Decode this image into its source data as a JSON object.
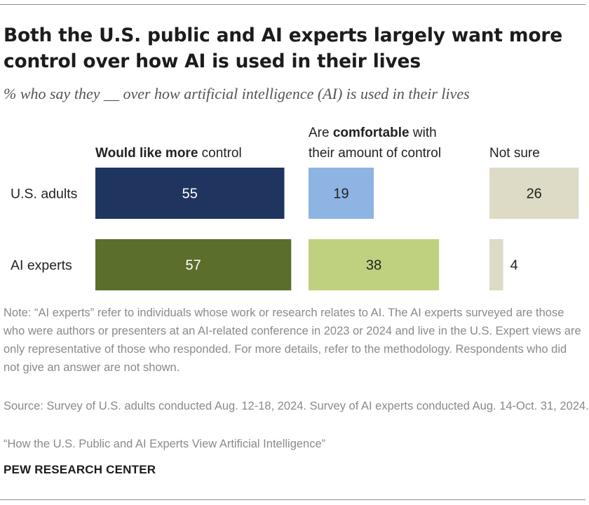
{
  "title": "Both the U.S. public and AI experts largely want more control over how AI is used in their lives",
  "subtitle": "% who say they __ over how artificial intelligence (AI) is used in their lives",
  "chart_data": {
    "type": "bar",
    "orientation": "horizontal",
    "layout": "side-by-side columns",
    "categories": [
      "U.S. adults",
      "AI experts"
    ],
    "series": [
      {
        "name": "Would like more control",
        "name_bold": "Would like more",
        "name_rest": " control",
        "values": [
          55,
          57
        ],
        "colors": [
          "#1f3560",
          "#5c6e2c"
        ],
        "text_colors": [
          "#ffffff",
          "#ffffff"
        ]
      },
      {
        "name": "Are comfortable with their amount of control",
        "name_line1_pre": "Are ",
        "name_line1_bold": "comfortable",
        "name_line1_post": " with",
        "name_line2": "their amount of control",
        "values": [
          19,
          38
        ],
        "colors": [
          "#8eb4e3",
          "#bfd17f"
        ],
        "text_colors": [
          "#222222",
          "#222222"
        ]
      },
      {
        "name": "Not sure",
        "values": [
          26,
          4
        ],
        "colors": [
          "#dddac6",
          "#dddac6"
        ],
        "text_colors": [
          "#222222",
          "#222222"
        ]
      }
    ],
    "value_unit": "%"
  },
  "notes": {
    "note": "Note: “AI experts” refer to individuals whose work or research relates to AI. The AI experts surveyed are those who were authors or presenters at an AI-related conference in 2023 or 2024 and live in the U.S. Expert views are only representative of those who responded. For more details, refer to the methodology. Respondents who did not give an answer are not shown.",
    "source": "Source: Survey of U.S. adults conducted Aug. 12-18, 2024. Survey of AI experts conducted Aug. 14-Oct. 31, 2024.",
    "report": "“How the U.S. Public and AI Experts View Artificial Intelligence”"
  },
  "brand": "PEW RESEARCH CENTER"
}
